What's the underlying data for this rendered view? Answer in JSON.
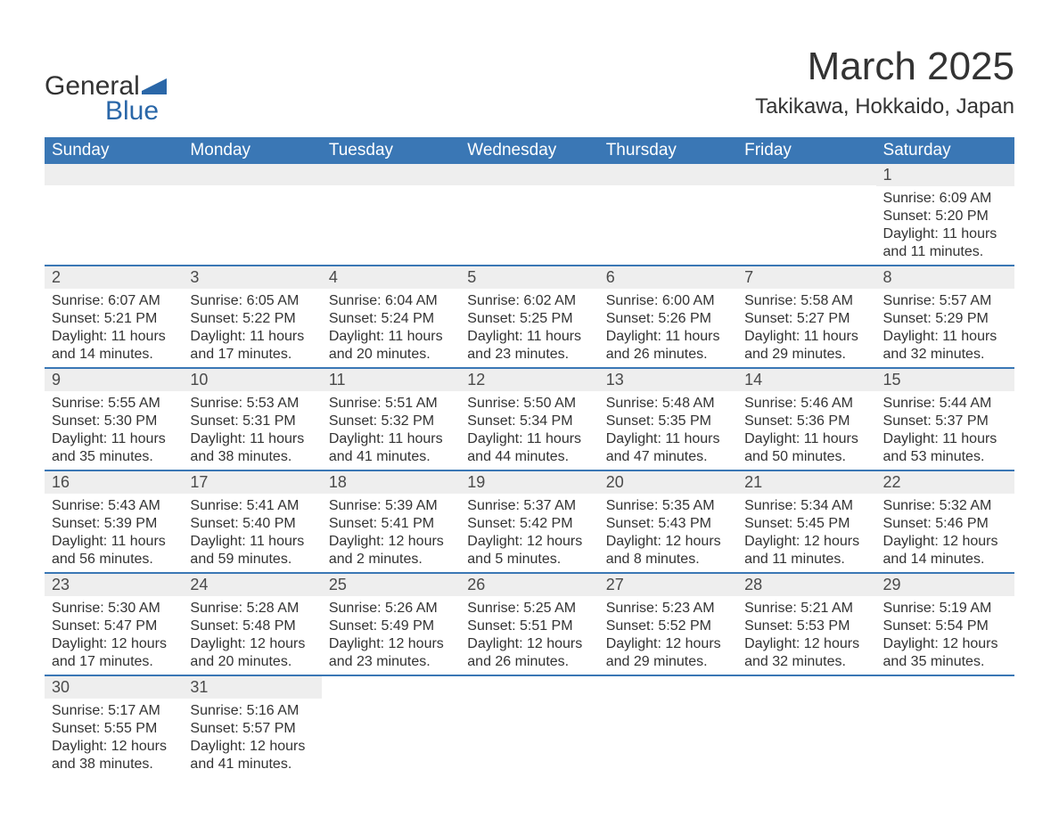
{
  "logo": {
    "word1": "General",
    "word2": "Blue"
  },
  "title": "March 2025",
  "location": "Takikawa, Hokkaido, Japan",
  "weekdays": [
    "Sunday",
    "Monday",
    "Tuesday",
    "Wednesday",
    "Thursday",
    "Friday",
    "Saturday"
  ],
  "colors": {
    "header_bg": "#3a77b5",
    "header_text": "#ffffff",
    "daynum_bg": "#eeeeee",
    "row_border": "#3a77b5",
    "text": "#333333",
    "logo_accent": "#2a67a8"
  },
  "weeks": [
    [
      null,
      null,
      null,
      null,
      null,
      null,
      {
        "n": "1",
        "sunrise": "Sunrise: 6:09 AM",
        "sunset": "Sunset: 5:20 PM",
        "dl1": "Daylight: 11 hours",
        "dl2": "and 11 minutes."
      }
    ],
    [
      {
        "n": "2",
        "sunrise": "Sunrise: 6:07 AM",
        "sunset": "Sunset: 5:21 PM",
        "dl1": "Daylight: 11 hours",
        "dl2": "and 14 minutes."
      },
      {
        "n": "3",
        "sunrise": "Sunrise: 6:05 AM",
        "sunset": "Sunset: 5:22 PM",
        "dl1": "Daylight: 11 hours",
        "dl2": "and 17 minutes."
      },
      {
        "n": "4",
        "sunrise": "Sunrise: 6:04 AM",
        "sunset": "Sunset: 5:24 PM",
        "dl1": "Daylight: 11 hours",
        "dl2": "and 20 minutes."
      },
      {
        "n": "5",
        "sunrise": "Sunrise: 6:02 AM",
        "sunset": "Sunset: 5:25 PM",
        "dl1": "Daylight: 11 hours",
        "dl2": "and 23 minutes."
      },
      {
        "n": "6",
        "sunrise": "Sunrise: 6:00 AM",
        "sunset": "Sunset: 5:26 PM",
        "dl1": "Daylight: 11 hours",
        "dl2": "and 26 minutes."
      },
      {
        "n": "7",
        "sunrise": "Sunrise: 5:58 AM",
        "sunset": "Sunset: 5:27 PM",
        "dl1": "Daylight: 11 hours",
        "dl2": "and 29 minutes."
      },
      {
        "n": "8",
        "sunrise": "Sunrise: 5:57 AM",
        "sunset": "Sunset: 5:29 PM",
        "dl1": "Daylight: 11 hours",
        "dl2": "and 32 minutes."
      }
    ],
    [
      {
        "n": "9",
        "sunrise": "Sunrise: 5:55 AM",
        "sunset": "Sunset: 5:30 PM",
        "dl1": "Daylight: 11 hours",
        "dl2": "and 35 minutes."
      },
      {
        "n": "10",
        "sunrise": "Sunrise: 5:53 AM",
        "sunset": "Sunset: 5:31 PM",
        "dl1": "Daylight: 11 hours",
        "dl2": "and 38 minutes."
      },
      {
        "n": "11",
        "sunrise": "Sunrise: 5:51 AM",
        "sunset": "Sunset: 5:32 PM",
        "dl1": "Daylight: 11 hours",
        "dl2": "and 41 minutes."
      },
      {
        "n": "12",
        "sunrise": "Sunrise: 5:50 AM",
        "sunset": "Sunset: 5:34 PM",
        "dl1": "Daylight: 11 hours",
        "dl2": "and 44 minutes."
      },
      {
        "n": "13",
        "sunrise": "Sunrise: 5:48 AM",
        "sunset": "Sunset: 5:35 PM",
        "dl1": "Daylight: 11 hours",
        "dl2": "and 47 minutes."
      },
      {
        "n": "14",
        "sunrise": "Sunrise: 5:46 AM",
        "sunset": "Sunset: 5:36 PM",
        "dl1": "Daylight: 11 hours",
        "dl2": "and 50 minutes."
      },
      {
        "n": "15",
        "sunrise": "Sunrise: 5:44 AM",
        "sunset": "Sunset: 5:37 PM",
        "dl1": "Daylight: 11 hours",
        "dl2": "and 53 minutes."
      }
    ],
    [
      {
        "n": "16",
        "sunrise": "Sunrise: 5:43 AM",
        "sunset": "Sunset: 5:39 PM",
        "dl1": "Daylight: 11 hours",
        "dl2": "and 56 minutes."
      },
      {
        "n": "17",
        "sunrise": "Sunrise: 5:41 AM",
        "sunset": "Sunset: 5:40 PM",
        "dl1": "Daylight: 11 hours",
        "dl2": "and 59 minutes."
      },
      {
        "n": "18",
        "sunrise": "Sunrise: 5:39 AM",
        "sunset": "Sunset: 5:41 PM",
        "dl1": "Daylight: 12 hours",
        "dl2": "and 2 minutes."
      },
      {
        "n": "19",
        "sunrise": "Sunrise: 5:37 AM",
        "sunset": "Sunset: 5:42 PM",
        "dl1": "Daylight: 12 hours",
        "dl2": "and 5 minutes."
      },
      {
        "n": "20",
        "sunrise": "Sunrise: 5:35 AM",
        "sunset": "Sunset: 5:43 PM",
        "dl1": "Daylight: 12 hours",
        "dl2": "and 8 minutes."
      },
      {
        "n": "21",
        "sunrise": "Sunrise: 5:34 AM",
        "sunset": "Sunset: 5:45 PM",
        "dl1": "Daylight: 12 hours",
        "dl2": "and 11 minutes."
      },
      {
        "n": "22",
        "sunrise": "Sunrise: 5:32 AM",
        "sunset": "Sunset: 5:46 PM",
        "dl1": "Daylight: 12 hours",
        "dl2": "and 14 minutes."
      }
    ],
    [
      {
        "n": "23",
        "sunrise": "Sunrise: 5:30 AM",
        "sunset": "Sunset: 5:47 PM",
        "dl1": "Daylight: 12 hours",
        "dl2": "and 17 minutes."
      },
      {
        "n": "24",
        "sunrise": "Sunrise: 5:28 AM",
        "sunset": "Sunset: 5:48 PM",
        "dl1": "Daylight: 12 hours",
        "dl2": "and 20 minutes."
      },
      {
        "n": "25",
        "sunrise": "Sunrise: 5:26 AM",
        "sunset": "Sunset: 5:49 PM",
        "dl1": "Daylight: 12 hours",
        "dl2": "and 23 minutes."
      },
      {
        "n": "26",
        "sunrise": "Sunrise: 5:25 AM",
        "sunset": "Sunset: 5:51 PM",
        "dl1": "Daylight: 12 hours",
        "dl2": "and 26 minutes."
      },
      {
        "n": "27",
        "sunrise": "Sunrise: 5:23 AM",
        "sunset": "Sunset: 5:52 PM",
        "dl1": "Daylight: 12 hours",
        "dl2": "and 29 minutes."
      },
      {
        "n": "28",
        "sunrise": "Sunrise: 5:21 AM",
        "sunset": "Sunset: 5:53 PM",
        "dl1": "Daylight: 12 hours",
        "dl2": "and 32 minutes."
      },
      {
        "n": "29",
        "sunrise": "Sunrise: 5:19 AM",
        "sunset": "Sunset: 5:54 PM",
        "dl1": "Daylight: 12 hours",
        "dl2": "and 35 minutes."
      }
    ],
    [
      {
        "n": "30",
        "sunrise": "Sunrise: 5:17 AM",
        "sunset": "Sunset: 5:55 PM",
        "dl1": "Daylight: 12 hours",
        "dl2": "and 38 minutes."
      },
      {
        "n": "31",
        "sunrise": "Sunrise: 5:16 AM",
        "sunset": "Sunset: 5:57 PM",
        "dl1": "Daylight: 12 hours",
        "dl2": "and 41 minutes."
      },
      null,
      null,
      null,
      null,
      null
    ]
  ]
}
